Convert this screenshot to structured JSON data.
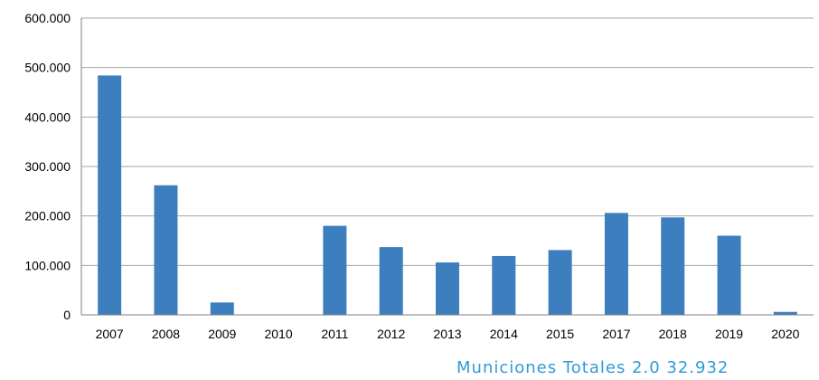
{
  "chart_data": {
    "type": "bar",
    "categories": [
      "2007",
      "2008",
      "2009",
      "2010",
      "2011",
      "2012",
      "2013",
      "2014",
      "2015",
      "2017",
      "2018",
      "2019",
      "2020"
    ],
    "series": [
      {
        "values": [
          484000,
          262000,
          25000,
          0,
          180000,
          137000,
          106000,
          119000,
          131000,
          206000,
          197000,
          160000,
          6000
        ]
      }
    ],
    "ylim": [
      0,
      600000
    ],
    "yticks": [
      0,
      100000,
      200000,
      300000,
      400000,
      500000,
      600000
    ],
    "ytick_labels": [
      "0",
      "100.000",
      "200.000",
      "300.000",
      "400.000",
      "500.000",
      "600.000"
    ],
    "grid": true,
    "legend": "none",
    "bar_color": "#3d7ebf",
    "annotation": "Municiones  Totales 2.0 32.932"
  },
  "colors": {
    "bar": "#3d7ebf",
    "grid": "#a6a6a6",
    "axis": "#7f7f7f",
    "annotation": "#2f9bd6"
  }
}
